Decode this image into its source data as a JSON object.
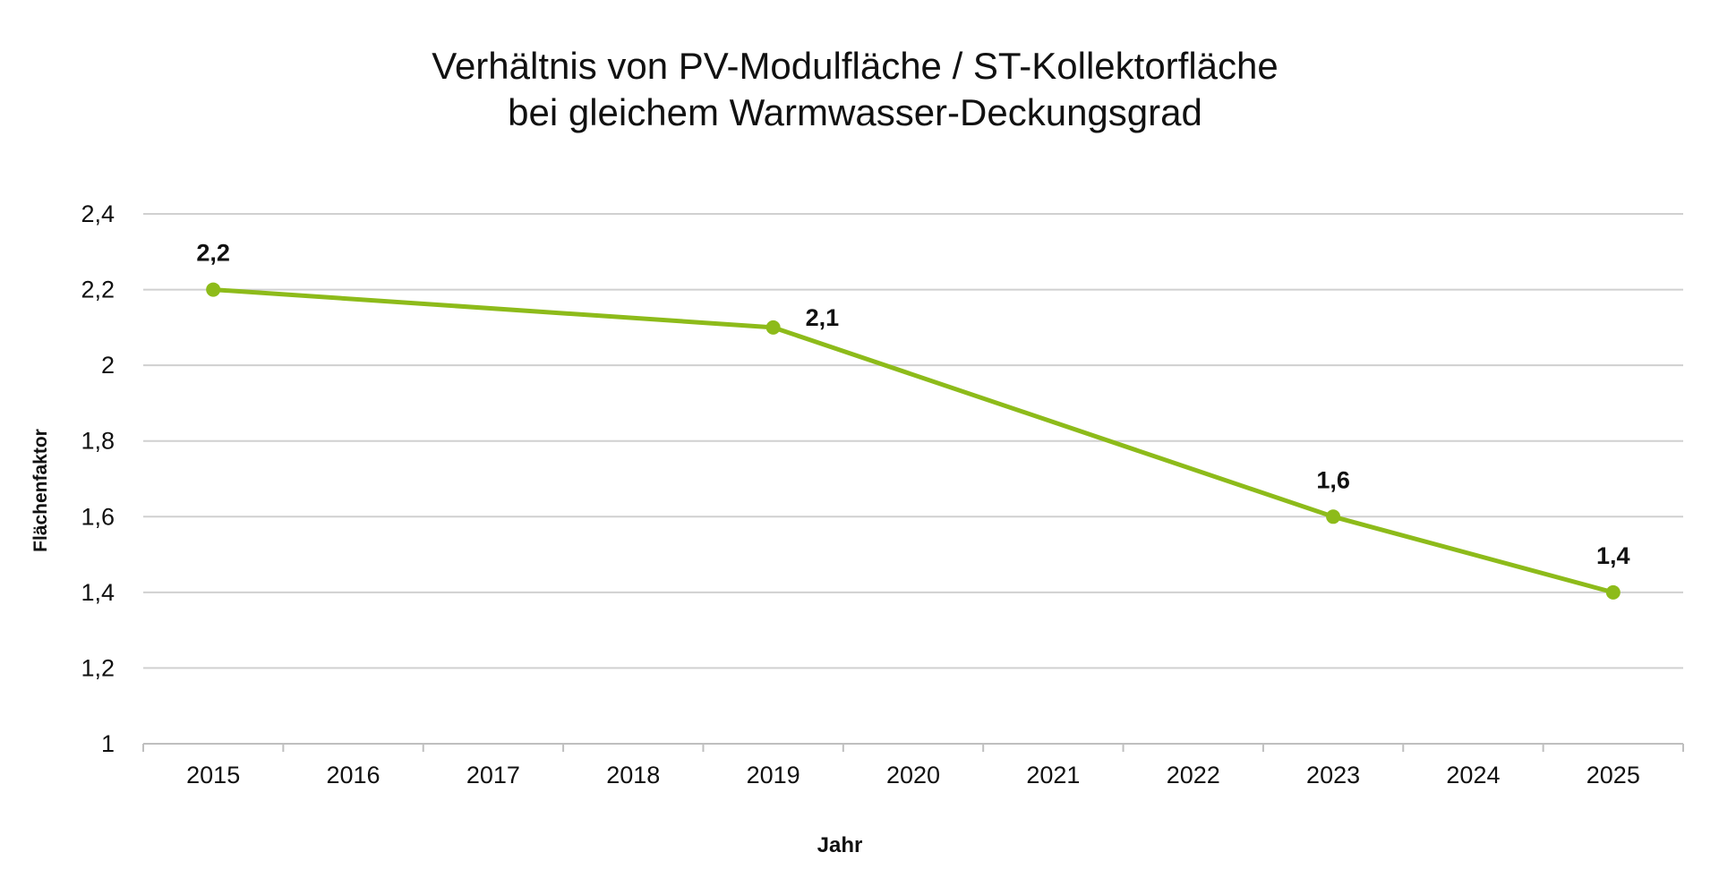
{
  "chart_data": {
    "type": "line",
    "title_lines": [
      "Verhältnis von PV-Modulfläche / ST-Kollektorfläche",
      "bei gleichem Warmwasser-Deckungsgrad"
    ],
    "xlabel": "Jahr",
    "ylabel": "Flächenfaktor",
    "categories": [
      "2015",
      "2016",
      "2017",
      "2018",
      "2019",
      "2020",
      "2021",
      "2022",
      "2023",
      "2024",
      "2025"
    ],
    "yticks": [
      "1",
      "1,2",
      "1,4",
      "1,6",
      "1,8",
      "2",
      "2,2",
      "2,4"
    ],
    "ylim": [
      1,
      2.4
    ],
    "grid": true,
    "series": [
      {
        "name": "Flächenfaktor",
        "color": "#8dbb1a",
        "points": [
          {
            "x": "2015",
            "y": 2.2,
            "label": "2,2"
          },
          {
            "x": "2019",
            "y": 2.1,
            "label": "2,1"
          },
          {
            "x": "2023",
            "y": 1.6,
            "label": "1,6"
          },
          {
            "x": "2025",
            "y": 1.4,
            "label": "1,4"
          }
        ]
      }
    ]
  },
  "colors": {
    "series": "#8dbb1a",
    "grid": "#d0d0d0",
    "axis": "#bfbfbf",
    "text": "#111111"
  }
}
